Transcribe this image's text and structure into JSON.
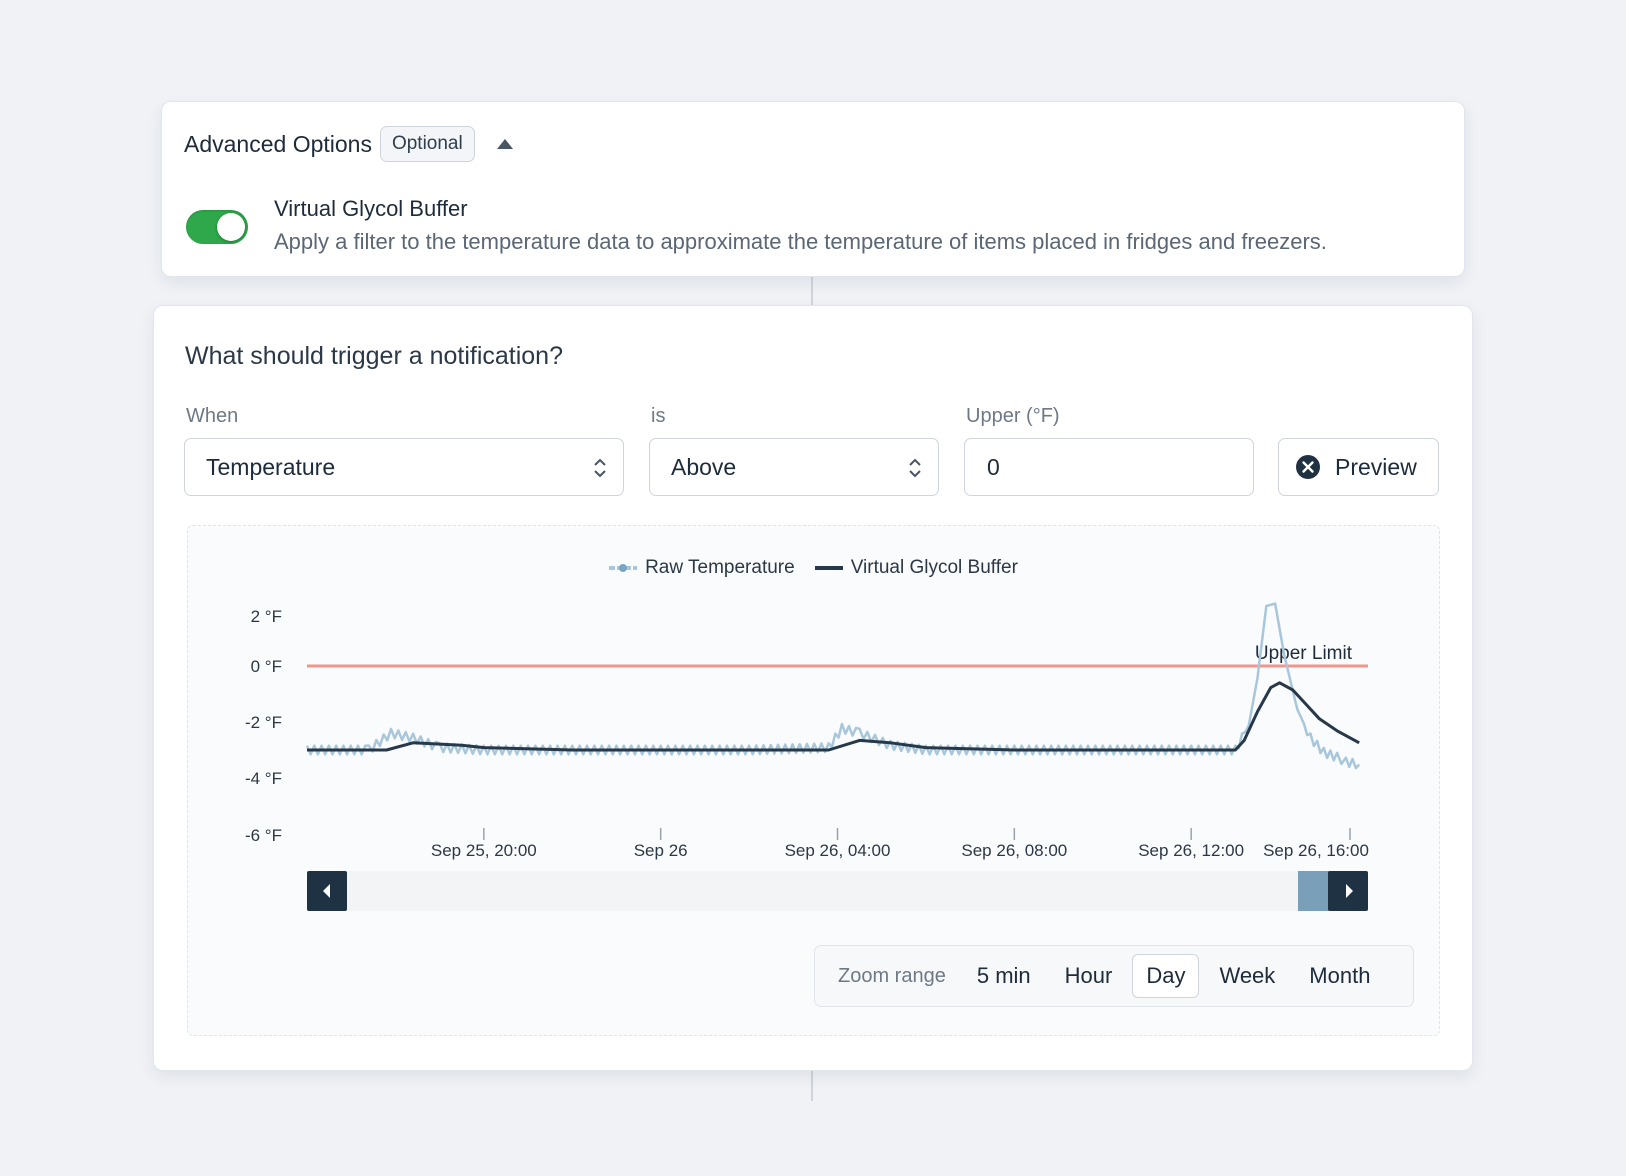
{
  "advanced": {
    "title": "Advanced Options",
    "badge": "Optional",
    "toggle_on": true,
    "vgb_title": "Virtual Glycol Buffer",
    "vgb_desc": "Apply a filter to the temperature data to approximate the temperature of items placed in fridges and freezers."
  },
  "trigger": {
    "title": "What should trigger a notification?",
    "when_label": "When",
    "when_value": "Temperature",
    "is_label": "is",
    "is_value": "Above",
    "upper_label": "Upper (°F)",
    "upper_value": "0",
    "preview_label": "Preview"
  },
  "colors": {
    "raw": "#a9c7db",
    "buffer": "#263849",
    "limit": "#f2958c",
    "toggle": "#2ea84a",
    "handle": "#1f3244",
    "handle_selected": "#7a9fb8"
  },
  "chart_data": {
    "type": "line",
    "legend": [
      "Raw Temperature",
      "Virtual Glycol Buffer"
    ],
    "legend_position": "top-center",
    "y_ticks": [
      "2 °F",
      "0 °F",
      "-2 °F",
      "-4 °F",
      "-6 °F"
    ],
    "x_ticks": [
      "Sep 25, 20:00",
      "Sep 26",
      "Sep 26, 04:00",
      "Sep 26, 08:00",
      "Sep 26, 12:00",
      "Sep 26, 16:00"
    ],
    "ylim": [
      -6,
      2.6
    ],
    "xlim_hours": [
      -4,
      20
    ],
    "upper_limit": {
      "value": 0,
      "label": "Upper Limit"
    },
    "series": [
      {
        "name": "Raw Temperature",
        "x_hours": [
          -4,
          -2.6,
          -2.1,
          -1.6,
          -1.0,
          0,
          2,
          4,
          6,
          7.8,
          8.1,
          8.5,
          9.2,
          10,
          12,
          14,
          16,
          17.0,
          17.3,
          17.5,
          17.7,
          17.9,
          18.1,
          18.4,
          18.7,
          19.0,
          19.3,
          19.5,
          19.8
        ],
        "values": [
          -3.5,
          -3.5,
          -2.8,
          -3.0,
          -3.4,
          -3.5,
          -3.5,
          -3.5,
          -3.5,
          -3.4,
          -2.6,
          -2.8,
          -3.3,
          -3.5,
          -3.5,
          -3.5,
          -3.5,
          -3.5,
          -2.5,
          -0.5,
          2.5,
          2.6,
          0.5,
          -1.8,
          -3.0,
          -3.6,
          -3.8,
          -4.0,
          -4.1
        ]
      },
      {
        "name": "Virtual Glycol Buffer",
        "x_hours": [
          -4,
          -2.2,
          -1.6,
          -0.5,
          0,
          2,
          4,
          6.5,
          7.2,
          7.8,
          8.5,
          9.2,
          10,
          12,
          15,
          17.0,
          17.2,
          17.5,
          17.8,
          18.0,
          18.3,
          18.6,
          18.9,
          19.3,
          19.8
        ],
        "values": [
          -3.5,
          -3.5,
          -3.2,
          -3.3,
          -3.4,
          -3.5,
          -3.5,
          -3.5,
          -3.5,
          -3.5,
          -3.1,
          -3.2,
          -3.4,
          -3.5,
          -3.5,
          -3.5,
          -3.1,
          -1.9,
          -0.9,
          -0.7,
          -1.0,
          -1.6,
          -2.2,
          -2.7,
          -3.2
        ]
      }
    ]
  },
  "zoom": {
    "label": "Zoom range",
    "options": [
      "5 min",
      "Hour",
      "Day",
      "Week",
      "Month"
    ],
    "active": "Day"
  }
}
